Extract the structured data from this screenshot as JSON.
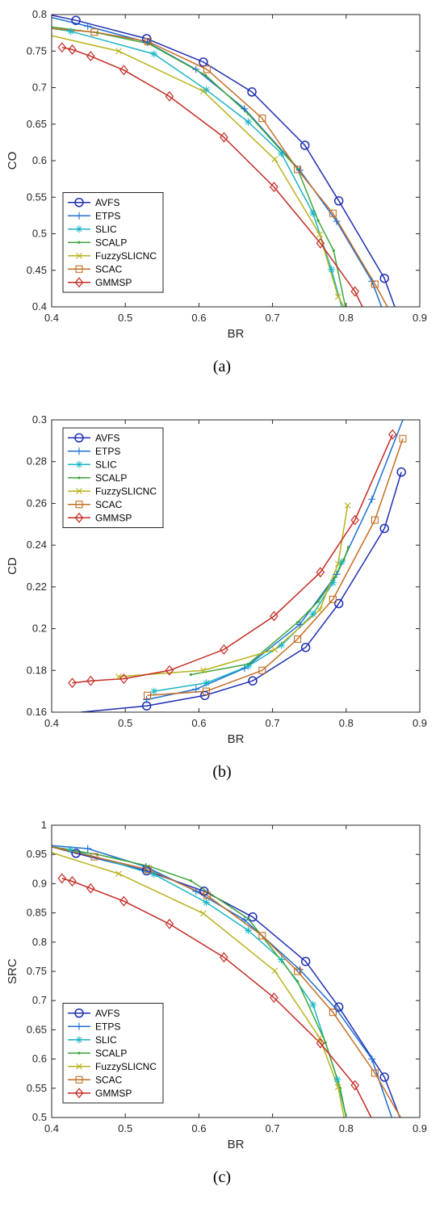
{
  "colors": {
    "AVFS": "#1f2fb3",
    "ETPS": "#1f6fd0",
    "SLIC": "#19b5c4",
    "SCALP": "#3da637",
    "FuzzySLICNC": "#b8b21a",
    "SCAC": "#c46d24",
    "GMMSP": "#c42a22"
  },
  "markers": {
    "AVFS": "circle",
    "ETPS": "plus",
    "SLIC": "asterisk",
    "SCALP": "point",
    "FuzzySLICNC": "cross",
    "SCAC": "square",
    "GMMSP": "diamond"
  },
  "legend_order": [
    "AVFS",
    "ETPS",
    "SLIC",
    "SCALP",
    "FuzzySLICNC",
    "SCAC",
    "GMMSP"
  ],
  "chart_data": [
    {
      "type": "line",
      "caption": "(a)",
      "xlabel": "BR",
      "ylabel": "CO",
      "xlim": [
        0.4,
        0.9
      ],
      "ylim": [
        0.4,
        0.8
      ],
      "xticks": [
        "0.4",
        "0.5",
        "0.6",
        "0.7",
        "0.8",
        "0.9"
      ],
      "yticks": [
        "0.4",
        "0.45",
        "0.5",
        "0.55",
        "0.6",
        "0.65",
        "0.7",
        "0.75",
        "0.8"
      ],
      "legend_position": "bottom-left",
      "series": [
        {
          "name": "AVFS",
          "x": [
            0.4,
            0.433,
            0.529,
            0.606,
            0.672,
            0.744,
            0.79,
            0.852,
            0.866
          ],
          "y": [
            0.799,
            0.792,
            0.767,
            0.735,
            0.694,
            0.621,
            0.545,
            0.439,
            0.4
          ]
        },
        {
          "name": "ETPS",
          "x": [
            0.4,
            0.449,
            0.53,
            0.596,
            0.662,
            0.737,
            0.787,
            0.835,
            0.848
          ],
          "y": [
            0.796,
            0.784,
            0.762,
            0.725,
            0.671,
            0.587,
            0.517,
            0.435,
            0.4
          ]
        },
        {
          "name": "SLIC",
          "x": [
            0.4,
            0.426,
            0.539,
            0.61,
            0.667,
            0.712,
            0.755,
            0.78,
            0.794
          ],
          "y": [
            0.781,
            0.777,
            0.746,
            0.697,
            0.653,
            0.61,
            0.528,
            0.451,
            0.4
          ]
        },
        {
          "name": "SCALP",
          "x": [
            0.4,
            0.462,
            0.532,
            0.609,
            0.667,
            0.734,
            0.762,
            0.783,
            0.799
          ],
          "y": [
            0.783,
            0.775,
            0.76,
            0.717,
            0.664,
            0.589,
            0.518,
            0.477,
            0.4
          ]
        },
        {
          "name": "FuzzySLICNC",
          "x": [
            0.4,
            0.491,
            0.606,
            0.703,
            0.764,
            0.789,
            0.797
          ],
          "y": [
            0.771,
            0.75,
            0.695,
            0.602,
            0.499,
            0.414,
            0.4
          ]
        },
        {
          "name": "SCAC",
          "x": [
            0.4,
            0.458,
            0.531,
            0.611,
            0.686,
            0.734,
            0.782,
            0.839,
            0.856
          ],
          "y": [
            0.781,
            0.776,
            0.763,
            0.725,
            0.658,
            0.588,
            0.528,
            0.431,
            0.4
          ]
        },
        {
          "name": "GMMSP",
          "x": [
            0.414,
            0.428,
            0.453,
            0.498,
            0.56,
            0.634,
            0.702,
            0.765,
            0.812,
            0.822
          ],
          "y": [
            0.755,
            0.752,
            0.743,
            0.724,
            0.688,
            0.632,
            0.564,
            0.487,
            0.421,
            0.4
          ]
        }
      ]
    },
    {
      "type": "line",
      "caption": "(b)",
      "xlabel": "BR",
      "ylabel": "CD",
      "xlim": [
        0.4,
        0.9
      ],
      "ylim": [
        0.16,
        0.3
      ],
      "xticks": [
        "0.4",
        "0.5",
        "0.6",
        "0.7",
        "0.8",
        "0.9"
      ],
      "yticks": [
        "0.16",
        "0.18",
        "0.2",
        "0.22",
        "0.24",
        "0.26",
        "0.28",
        "0.3"
      ],
      "legend_position": "top-left",
      "series": [
        {
          "name": "AVFS",
          "x": [
            0.44,
            0.529,
            0.608,
            0.673,
            0.745,
            0.79,
            0.852,
            0.875
          ],
          "y": [
            0.16,
            0.163,
            0.168,
            0.175,
            0.191,
            0.212,
            0.248,
            0.275
          ]
        },
        {
          "name": "ETPS",
          "x": [
            0.529,
            0.596,
            0.662,
            0.737,
            0.787,
            0.835,
            0.877
          ],
          "y": [
            0.166,
            0.171,
            0.181,
            0.202,
            0.226,
            0.262,
            0.3
          ]
        },
        {
          "name": "SLIC",
          "x": [
            0.539,
            0.61,
            0.667,
            0.712,
            0.755,
            0.782,
            0.794
          ],
          "y": [
            0.17,
            0.174,
            0.182,
            0.192,
            0.207,
            0.222,
            0.232
          ]
        },
        {
          "name": "SCALP",
          "x": [
            0.589,
            0.667,
            0.734,
            0.762,
            0.786,
            0.797,
            0.803
          ],
          "y": [
            0.178,
            0.183,
            0.203,
            0.213,
            0.225,
            0.233,
            0.239
          ]
        },
        {
          "name": "FuzzySLICNC",
          "x": [
            0.491,
            0.606,
            0.703,
            0.764,
            0.789,
            0.802
          ],
          "y": [
            0.177,
            0.18,
            0.19,
            0.209,
            0.231,
            0.259
          ]
        },
        {
          "name": "SCAC",
          "x": [
            0.53,
            0.61,
            0.686,
            0.734,
            0.782,
            0.839,
            0.877
          ],
          "y": [
            0.168,
            0.17,
            0.18,
            0.195,
            0.214,
            0.252,
            0.291
          ]
        },
        {
          "name": "GMMSP",
          "x": [
            0.428,
            0.453,
            0.498,
            0.56,
            0.634,
            0.702,
            0.765,
            0.812,
            0.863
          ],
          "y": [
            0.174,
            0.175,
            0.176,
            0.18,
            0.19,
            0.206,
            0.227,
            0.252,
            0.293
          ]
        }
      ]
    },
    {
      "type": "line",
      "caption": "(c)",
      "xlabel": "BR",
      "ylabel": "SRC",
      "xlim": [
        0.4,
        0.9
      ],
      "ylim": [
        0.5,
        1
      ],
      "xticks": [
        "0.4",
        "0.5",
        "0.6",
        "0.7",
        "0.8",
        "0.9"
      ],
      "yticks": [
        "0.5",
        "0.55",
        "0.6",
        "0.65",
        "0.7",
        "0.75",
        "0.8",
        "0.85",
        "0.9",
        "0.95",
        "1"
      ],
      "legend_position": "bottom-left",
      "series": [
        {
          "name": "AVFS",
          "x": [
            0.4,
            0.433,
            0.529,
            0.607,
            0.673,
            0.745,
            0.79,
            0.852,
            0.873
          ],
          "y": [
            0.963,
            0.952,
            0.922,
            0.887,
            0.843,
            0.767,
            0.689,
            0.569,
            0.5
          ]
        },
        {
          "name": "ETPS",
          "x": [
            0.4,
            0.449,
            0.528,
            0.596,
            0.662,
            0.737,
            0.787,
            0.835,
            0.862
          ],
          "y": [
            0.965,
            0.96,
            0.929,
            0.887,
            0.838,
            0.753,
            0.685,
            0.6,
            0.5
          ]
        },
        {
          "name": "SLIC",
          "x": [
            0.4,
            0.426,
            0.539,
            0.61,
            0.667,
            0.712,
            0.755,
            0.788,
            0.8
          ],
          "y": [
            0.963,
            0.958,
            0.916,
            0.868,
            0.82,
            0.77,
            0.693,
            0.565,
            0.5
          ]
        },
        {
          "name": "SCALP",
          "x": [
            0.4,
            0.462,
            0.532,
            0.589,
            0.667,
            0.734,
            0.772,
            0.792,
            0.8
          ],
          "y": [
            0.963,
            0.95,
            0.93,
            0.905,
            0.84,
            0.733,
            0.628,
            0.55,
            0.5
          ]
        },
        {
          "name": "FuzzySLICNC",
          "x": [
            0.4,
            0.491,
            0.606,
            0.703,
            0.764,
            0.789,
            0.797
          ],
          "y": [
            0.953,
            0.917,
            0.849,
            0.751,
            0.636,
            0.552,
            0.5
          ]
        },
        {
          "name": "SCAC",
          "x": [
            0.4,
            0.458,
            0.531,
            0.611,
            0.686,
            0.734,
            0.782,
            0.839,
            0.874
          ],
          "y": [
            0.963,
            0.946,
            0.924,
            0.88,
            0.811,
            0.75,
            0.68,
            0.576,
            0.5
          ]
        },
        {
          "name": "GMMSP",
          "x": [
            0.414,
            0.428,
            0.453,
            0.498,
            0.56,
            0.634,
            0.702,
            0.765,
            0.812,
            0.834
          ],
          "y": [
            0.909,
            0.904,
            0.892,
            0.87,
            0.831,
            0.774,
            0.705,
            0.627,
            0.555,
            0.5
          ]
        }
      ]
    }
  ]
}
